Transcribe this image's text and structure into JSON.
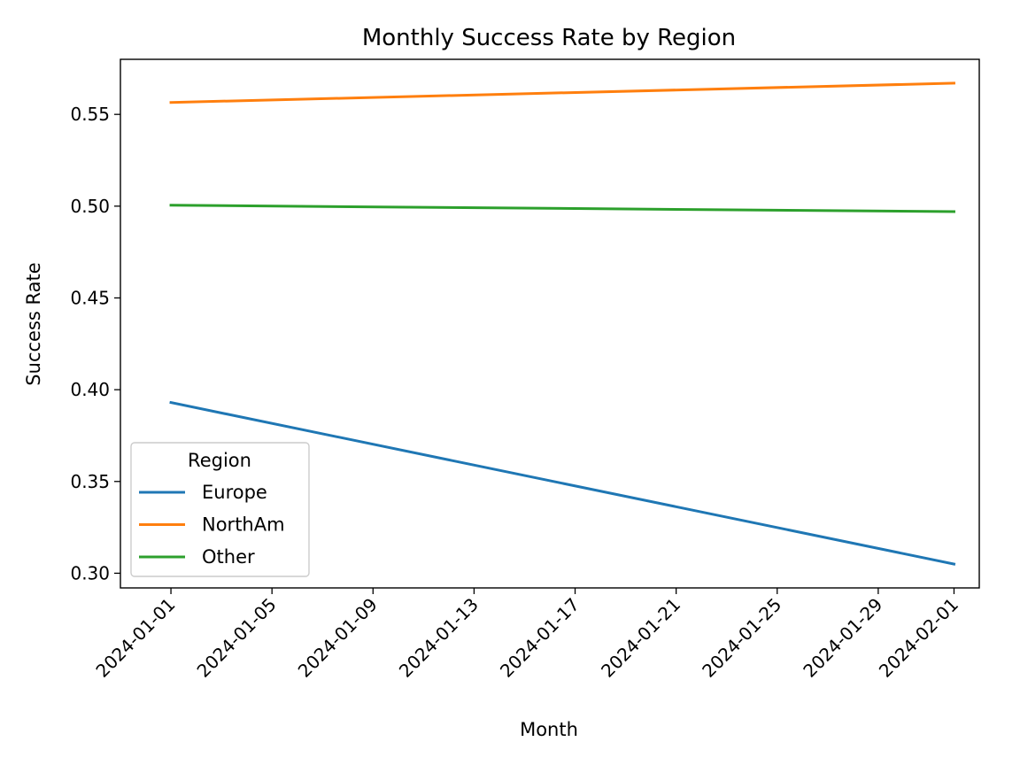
{
  "chart_data": {
    "type": "line",
    "title": "Monthly Success Rate by Region",
    "xlabel": "Month",
    "ylabel": "Success Rate",
    "x": [
      "2024-01-01",
      "2024-02-01"
    ],
    "x_ticks": [
      "2024-01-01",
      "2024-01-05",
      "2024-01-09",
      "2024-01-13",
      "2024-01-17",
      "2024-01-21",
      "2024-01-25",
      "2024-01-29",
      "2024-02-01"
    ],
    "xlim": [
      "2023-12-30",
      "2024-02-02"
    ],
    "y_ticks": [
      0.3,
      0.35,
      0.4,
      0.45,
      0.5,
      0.55
    ],
    "ylim": [
      0.292,
      0.58
    ],
    "grid": false,
    "legend": {
      "title": "Region",
      "placement": "lower-left"
    },
    "series": [
      {
        "name": "Europe",
        "color": "#1f77b4",
        "values": [
          0.393,
          0.305
        ]
      },
      {
        "name": "NorthAm",
        "color": "#ff7f0e",
        "values": [
          0.5565,
          0.567
        ]
      },
      {
        "name": "Other",
        "color": "#2ca02c",
        "values": [
          0.5005,
          0.497
        ]
      }
    ]
  }
}
